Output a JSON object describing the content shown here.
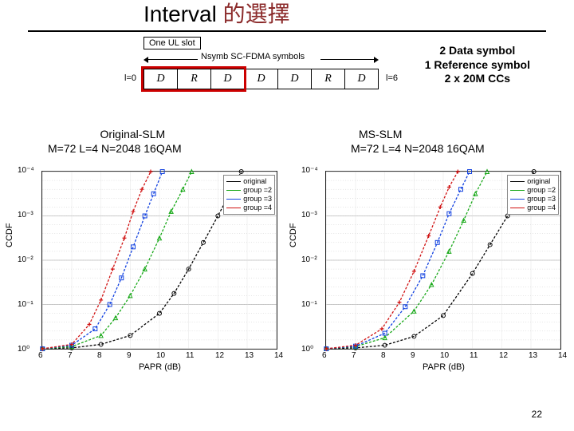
{
  "title": "Interval 的選擇",
  "title_colors": {
    "latin": "#000000",
    "cjk": "#8b2a2a"
  },
  "slot": {
    "box": "One UL slot",
    "arrow_label": "Nsymb SC-FDMA symbols",
    "left_l": "l=0",
    "right_l": "l=6",
    "cells": [
      "D",
      "R",
      "D",
      "D",
      "D",
      "R",
      "D"
    ]
  },
  "top_note": {
    "l1": "2 Data symbol",
    "l2": "1 Reference symbol",
    "l3": "2 x 20M CCs"
  },
  "left_label": {
    "l1": "Original-SLM",
    "l2": "M=72 L=4 N=2048 16QAM"
  },
  "right_label": {
    "l1": "MS-SLM",
    "l2": "M=72 L=4 N=2048 16QAM"
  },
  "axes": {
    "xlabel": "PAPR (dB)",
    "ylabel": "CCDF",
    "xlim": [
      6,
      14
    ],
    "ylim_exp": [
      -4,
      0
    ],
    "xticks": [
      6,
      7,
      8,
      9,
      10,
      11,
      12,
      13,
      14
    ],
    "yticks_exp": [
      0,
      -1,
      -2,
      -3,
      -4
    ],
    "ytick_labels": [
      "10⁰",
      "10⁻¹",
      "10⁻²",
      "10⁻³",
      "10⁻⁴"
    ],
    "grid_color": "#999999",
    "minor_grid": true
  },
  "legend": {
    "items": [
      {
        "label": "original",
        "color": "#000000",
        "marker": "circle",
        "dash": "3,2"
      },
      {
        "label": "group =2",
        "color": "#17a817",
        "marker": "triangle",
        "dash": "3,2"
      },
      {
        "label": "group =3",
        "color": "#1040e0",
        "marker": "square",
        "dash": "3,2"
      },
      {
        "label": "group =4",
        "color": "#d01010",
        "marker": "plus",
        "dash": "3,2"
      }
    ]
  },
  "chart_left": {
    "series": [
      {
        "key": "original",
        "pts": [
          [
            6.0,
            0.0
          ],
          [
            7.0,
            -0.02
          ],
          [
            8.0,
            -0.1
          ],
          [
            9.0,
            -0.3
          ],
          [
            10.0,
            -0.8
          ],
          [
            10.5,
            -1.25
          ],
          [
            11.0,
            -1.8
          ],
          [
            11.5,
            -2.4
          ],
          [
            12.0,
            -3.0
          ],
          [
            12.4,
            -3.5
          ],
          [
            12.8,
            -4.0
          ]
        ]
      },
      {
        "key": "group =2",
        "pts": [
          [
            6.0,
            0.0
          ],
          [
            7.0,
            -0.05
          ],
          [
            8.0,
            -0.3
          ],
          [
            8.5,
            -0.7
          ],
          [
            9.0,
            -1.2
          ],
          [
            9.5,
            -1.8
          ],
          [
            10.0,
            -2.5
          ],
          [
            10.4,
            -3.1
          ],
          [
            10.8,
            -3.6
          ],
          [
            11.1,
            -4.0
          ]
        ]
      },
      {
        "key": "group =3",
        "pts": [
          [
            6.0,
            0.0
          ],
          [
            7.0,
            -0.08
          ],
          [
            7.8,
            -0.45
          ],
          [
            8.3,
            -1.0
          ],
          [
            8.7,
            -1.6
          ],
          [
            9.1,
            -2.3
          ],
          [
            9.5,
            -3.0
          ],
          [
            9.8,
            -3.5
          ],
          [
            10.1,
            -4.0
          ]
        ]
      },
      {
        "key": "group =4",
        "pts": [
          [
            6.0,
            0.0
          ],
          [
            7.0,
            -0.1
          ],
          [
            7.6,
            -0.55
          ],
          [
            8.0,
            -1.1
          ],
          [
            8.4,
            -1.8
          ],
          [
            8.8,
            -2.5
          ],
          [
            9.1,
            -3.1
          ],
          [
            9.4,
            -3.6
          ],
          [
            9.7,
            -4.0
          ]
        ]
      }
    ]
  },
  "chart_right": {
    "series": [
      {
        "key": "original",
        "pts": [
          [
            6.0,
            0.0
          ],
          [
            7.0,
            -0.02
          ],
          [
            8.0,
            -0.08
          ],
          [
            9.0,
            -0.28
          ],
          [
            10.0,
            -0.75
          ],
          [
            11.0,
            -1.7
          ],
          [
            11.6,
            -2.35
          ],
          [
            12.2,
            -3.0
          ],
          [
            12.7,
            -3.55
          ],
          [
            13.1,
            -4.0
          ]
        ]
      },
      {
        "key": "group =2",
        "pts": [
          [
            6.0,
            0.0
          ],
          [
            7.0,
            -0.05
          ],
          [
            8.0,
            -0.25
          ],
          [
            9.0,
            -0.85
          ],
          [
            9.6,
            -1.45
          ],
          [
            10.2,
            -2.2
          ],
          [
            10.7,
            -2.9
          ],
          [
            11.1,
            -3.5
          ],
          [
            11.5,
            -4.0
          ]
        ]
      },
      {
        "key": "group =3",
        "pts": [
          [
            6.0,
            0.0
          ],
          [
            7.0,
            -0.06
          ],
          [
            8.0,
            -0.35
          ],
          [
            8.7,
            -0.95
          ],
          [
            9.3,
            -1.65
          ],
          [
            9.8,
            -2.4
          ],
          [
            10.2,
            -3.05
          ],
          [
            10.6,
            -3.6
          ],
          [
            10.9,
            -4.0
          ]
        ]
      },
      {
        "key": "group =4",
        "pts": [
          [
            6.0,
            0.0
          ],
          [
            7.0,
            -0.08
          ],
          [
            7.9,
            -0.45
          ],
          [
            8.5,
            -1.05
          ],
          [
            9.0,
            -1.75
          ],
          [
            9.5,
            -2.55
          ],
          [
            9.9,
            -3.2
          ],
          [
            10.2,
            -3.65
          ],
          [
            10.5,
            -4.0
          ]
        ]
      }
    ]
  },
  "style": {
    "line_width": 1.3,
    "marker_size": 5,
    "plot_bg": "#ffffff",
    "red_box_color": "#c00000"
  },
  "page_number": "22"
}
